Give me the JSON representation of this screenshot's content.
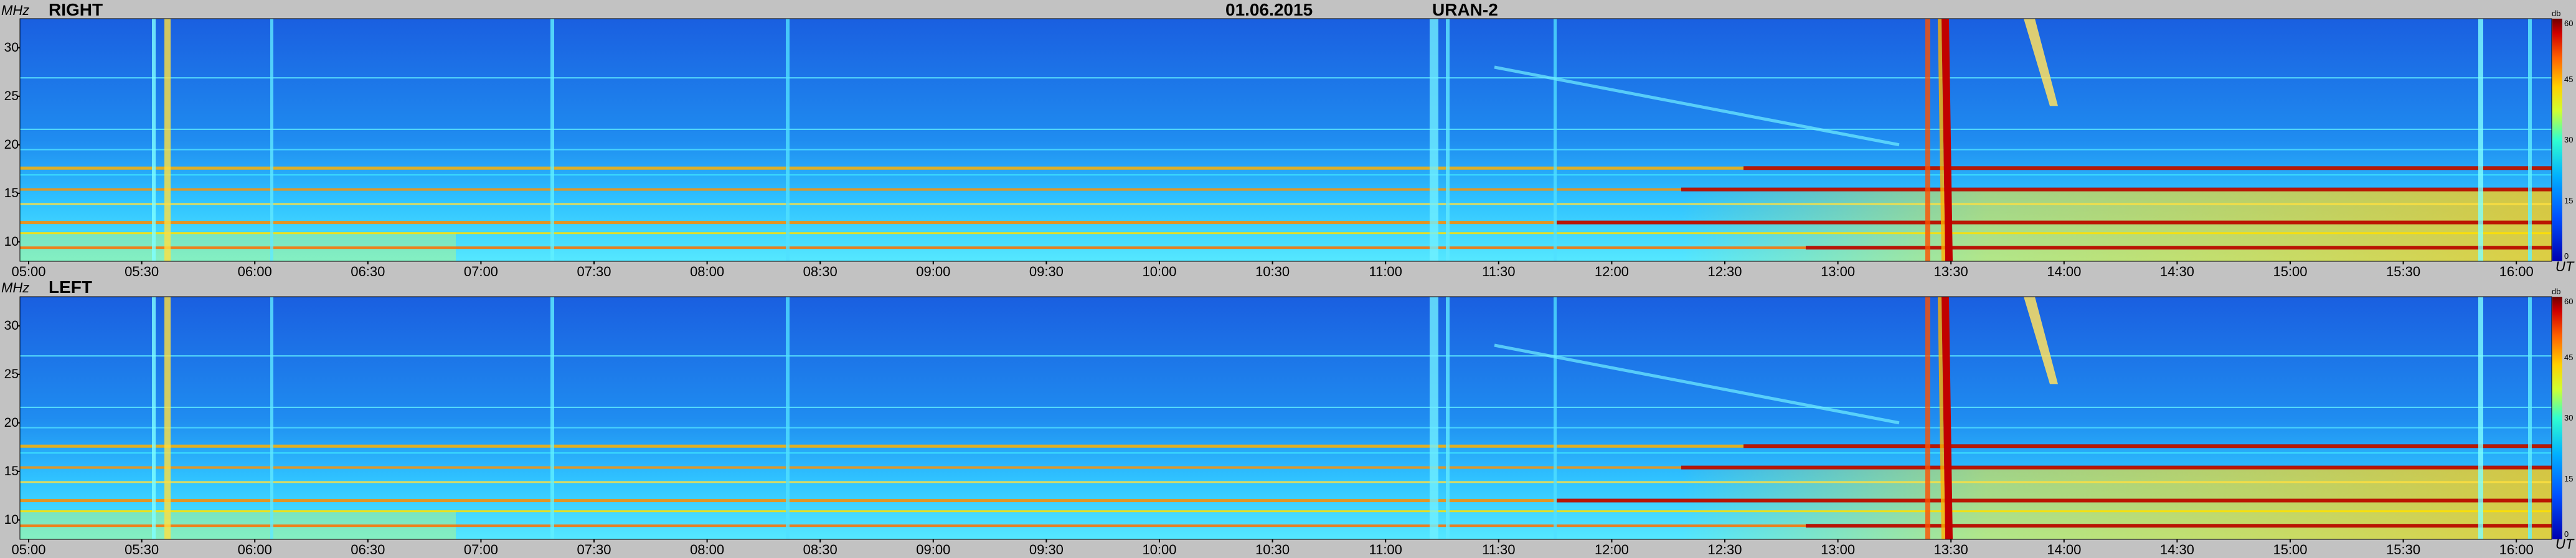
{
  "header": {
    "date": "01.06.2015",
    "instrument": "URAN-2"
  },
  "colors": {
    "background": "#c2c2c2",
    "low": "#1a6fe6",
    "mid": "#30e0ff",
    "high": "#ffe000",
    "max": "#c00000"
  },
  "chart_data": [
    {
      "type": "heatmap",
      "panel": "RIGHT",
      "y_unit": "MHz",
      "x_unit": "UT",
      "colorbar_unit": "db",
      "yticks": [
        "30",
        "25",
        "20",
        "15",
        "10"
      ],
      "ytick_values": [
        30,
        25,
        20,
        15,
        10
      ],
      "ylim": [
        8,
        33
      ],
      "xticks": [
        "05:00",
        "05:30",
        "06:00",
        "06:30",
        "07:00",
        "07:30",
        "08:00",
        "08:30",
        "09:00",
        "09:30",
        "10:00",
        "10:30",
        "11:00",
        "11:30",
        "12:00",
        "12:30",
        "13:00",
        "13:30",
        "14:00",
        "14:30",
        "15:00",
        "15:30",
        "16:00"
      ],
      "colorbar_ticks": [
        "60",
        "45",
        "30",
        "15",
        "0"
      ],
      "colorbar_range": [
        0,
        60
      ]
    },
    {
      "type": "heatmap",
      "panel": "LEFT",
      "y_unit": "MHz",
      "x_unit": "UT",
      "colorbar_unit": "db",
      "yticks": [
        "30",
        "25",
        "20",
        "15",
        "10"
      ],
      "ytick_values": [
        30,
        25,
        20,
        15,
        10
      ],
      "ylim": [
        8,
        33
      ],
      "xticks": [
        "05:00",
        "05:30",
        "06:00",
        "06:30",
        "07:00",
        "07:30",
        "08:00",
        "08:30",
        "09:00",
        "09:30",
        "10:00",
        "10:30",
        "11:00",
        "11:30",
        "12:00",
        "12:30",
        "13:00",
        "13:30",
        "14:00",
        "14:30",
        "15:00",
        "15:30",
        "16:00"
      ],
      "colorbar_ticks": [
        "60",
        "45",
        "30",
        "15",
        "0"
      ],
      "colorbar_range": [
        0,
        60
      ]
    }
  ]
}
